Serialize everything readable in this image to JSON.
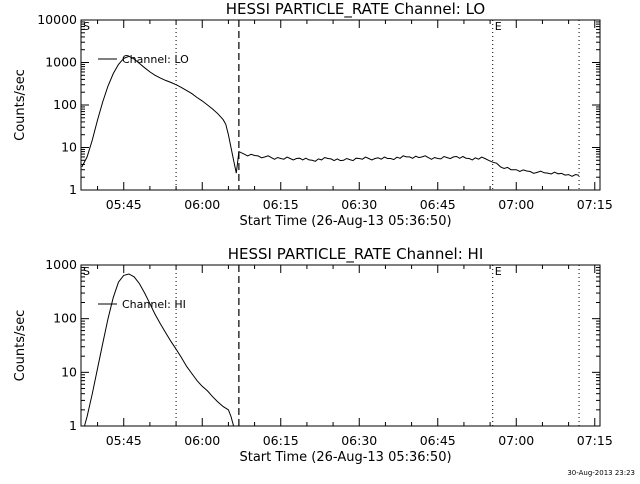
{
  "chart_data": [
    {
      "type": "line",
      "title": "HESSI PARTICLE_RATE Channel: LO",
      "xlabel": "Start Time (26-Aug-13 05:36:50)",
      "ylabel": "Counts/sec",
      "yscale": "log",
      "ylim": [
        1,
        10000
      ],
      "xlim": [
        "05:36:50",
        "07:16:00"
      ],
      "x_ticks": [
        "05:45",
        "06:00",
        "06:15",
        "06:30",
        "06:45",
        "07:00",
        "07:15"
      ],
      "y_ticks": [
        "1",
        "10",
        "100",
        "1000",
        "10000"
      ],
      "legend": {
        "label": "Channel: LO",
        "placement": "top-left"
      },
      "markers": [
        {
          "time": "05:36:50",
          "label": "S",
          "style": "none"
        },
        {
          "time": "05:55:00",
          "label": "",
          "style": "dotted"
        },
        {
          "time": "06:07:00",
          "label": "",
          "style": "dashed"
        },
        {
          "time": "06:55:30",
          "label": "E",
          "style": "dotted"
        },
        {
          "time": "07:12:00",
          "label": "",
          "style": "dotted"
        }
      ],
      "series": [
        {
          "x": [
            "05:37:00",
            "05:38:00",
            "05:39:00",
            "05:40:00",
            "05:41:00",
            "05:42:00",
            "05:43:00",
            "05:44:00",
            "05:45:00",
            "05:46:00",
            "05:47:00",
            "05:48:00",
            "05:49:00",
            "05:50:00",
            "05:51:00",
            "05:52:00",
            "05:53:00",
            "05:54:00",
            "05:55:00",
            "05:56:00",
            "05:57:00",
            "05:58:00",
            "05:59:00",
            "06:00:00",
            "06:01:00",
            "06:02:00",
            "06:03:00",
            "06:04:00",
            "06:04:30",
            "06:05:00",
            "06:05:30",
            "06:06:00",
            "06:06:30",
            "06:07:00",
            "06:08:00",
            "06:10:00",
            "06:12:00",
            "06:15:00",
            "06:18:00",
            "06:21:00",
            "06:24:00",
            "06:27:00",
            "06:30:00",
            "06:33:00",
            "06:36:00",
            "06:39:00",
            "06:42:00",
            "06:45:00",
            "06:48:00",
            "06:51:00",
            "06:54:00",
            "06:55:30",
            "06:57:00",
            "06:59:00",
            "07:00:00",
            "07:02:00",
            "07:04:00",
            "07:06:00",
            "07:08:00",
            "07:10:00",
            "07:12:00"
          ],
          "y": [
            3.5,
            6,
            15,
            45,
            120,
            280,
            550,
            900,
            1250,
            1400,
            1200,
            950,
            750,
            600,
            500,
            430,
            380,
            340,
            300,
            260,
            220,
            185,
            150,
            125,
            100,
            80,
            62,
            45,
            35,
            20,
            10,
            5,
            2.5,
            8,
            7,
            6.5,
            6,
            5.5,
            5.5,
            5,
            5.5,
            5,
            5.5,
            5.5,
            5.5,
            6,
            6,
            5.5,
            6,
            5.5,
            5.5,
            4.5,
            3.5,
            3,
            3,
            2.8,
            2.6,
            2.5,
            2.4,
            2.3,
            2.2
          ]
        }
      ]
    },
    {
      "type": "line",
      "title": "HESSI PARTICLE_RATE Channel: HI",
      "xlabel": "Start Time (26-Aug-13 05:36:50)",
      "ylabel": "Counts/sec",
      "yscale": "log",
      "ylim": [
        1,
        1000
      ],
      "xlim": [
        "05:36:50",
        "07:16:00"
      ],
      "x_ticks": [
        "05:45",
        "06:00",
        "06:15",
        "06:30",
        "06:45",
        "07:00",
        "07:15"
      ],
      "y_ticks": [
        "1",
        "10",
        "100",
        "1000"
      ],
      "legend": {
        "label": "Channel: HI",
        "placement": "top-left"
      },
      "markers": [
        {
          "time": "05:36:50",
          "label": "S",
          "style": "none"
        },
        {
          "time": "05:55:00",
          "label": "",
          "style": "dotted"
        },
        {
          "time": "06:07:00",
          "label": "",
          "style": "dashed"
        },
        {
          "time": "06:55:30",
          "label": "E",
          "style": "dotted"
        },
        {
          "time": "07:12:00",
          "label": "",
          "style": "dotted"
        }
      ],
      "series": [
        {
          "x": [
            "05:37:30",
            "05:38:00",
            "05:39:00",
            "05:40:00",
            "05:41:00",
            "05:42:00",
            "05:43:00",
            "05:44:00",
            "05:45:00",
            "05:46:00",
            "05:47:00",
            "05:48:00",
            "05:49:00",
            "05:50:00",
            "05:51:00",
            "05:52:00",
            "05:53:00",
            "05:54:00",
            "05:55:00",
            "05:56:00",
            "05:57:00",
            "05:58:00",
            "05:59:00",
            "06:00:00",
            "06:01:00",
            "06:02:00",
            "06:03:00",
            "06:04:00",
            "06:05:00",
            "06:05:30",
            "06:06:00"
          ],
          "y": [
            1,
            1.5,
            4,
            12,
            35,
            100,
            250,
            480,
            640,
            680,
            600,
            450,
            300,
            190,
            120,
            80,
            55,
            38,
            27,
            19,
            13,
            9.5,
            7,
            5.5,
            4.5,
            3.5,
            2.8,
            2.3,
            2,
            1.5,
            1
          ]
        }
      ]
    }
  ],
  "footer": {
    "timestamp": "30-Aug-2013 23:23"
  }
}
